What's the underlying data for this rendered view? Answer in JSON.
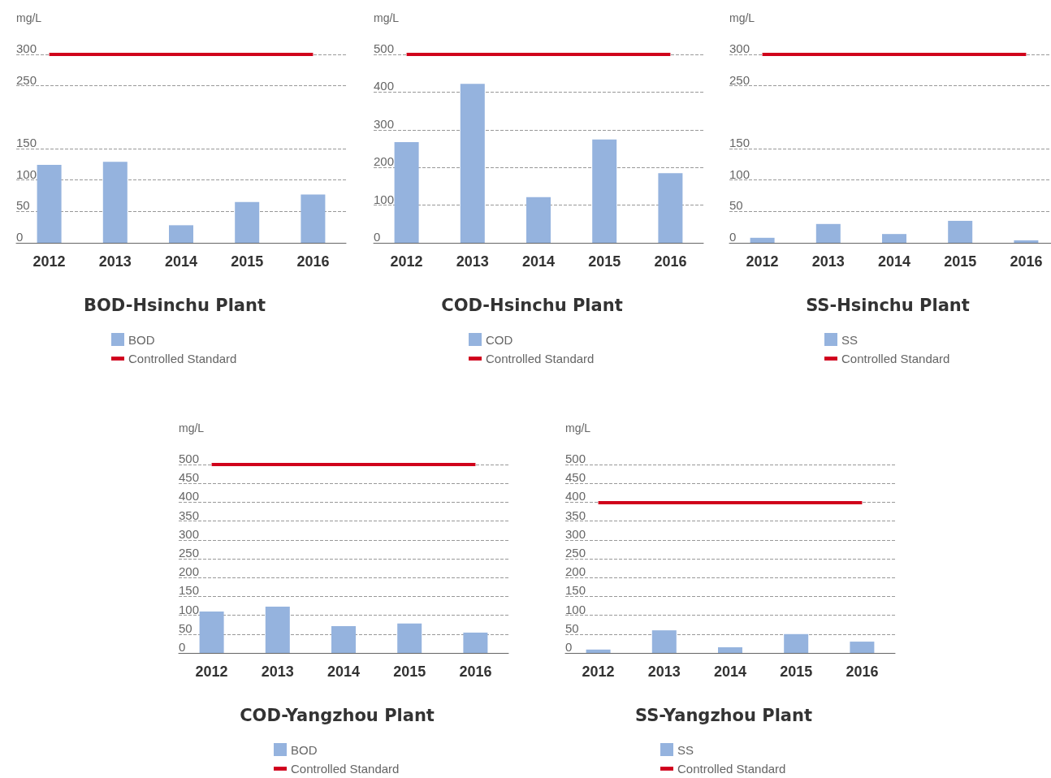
{
  "chart_data": [
    {
      "type": "bar",
      "title": "BOD-Hsinchu Plant",
      "ylabel": "mg/L",
      "categories": [
        "2012",
        "2013",
        "2014",
        "2015",
        "2016"
      ],
      "series": [
        {
          "name": "BOD",
          "color": "#95b3de",
          "values": [
            124,
            129,
            28,
            65,
            77
          ]
        }
      ],
      "ref_lines": [
        {
          "axis": "y",
          "value": 300,
          "label": "Controlled Standard",
          "color": "#d0021b"
        }
      ],
      "ylim": [
        0,
        300
      ],
      "yticks": [
        0,
        50,
        100,
        150,
        250,
        300
      ],
      "grid": "y",
      "legend": "bottom"
    },
    {
      "type": "bar",
      "title": "COD-Hsinchu Plant",
      "ylabel": "mg/L",
      "categories": [
        "2012",
        "2013",
        "2014",
        "2015",
        "2016"
      ],
      "series": [
        {
          "name": "COD",
          "color": "#95b3de",
          "values": [
            267,
            422,
            121,
            274,
            185
          ]
        }
      ],
      "ref_lines": [
        {
          "axis": "y",
          "value": 500,
          "label": "Controlled Standard",
          "color": "#d0021b"
        }
      ],
      "ylim": [
        0,
        500
      ],
      "yticks": [
        0,
        100,
        200,
        300,
        400,
        500
      ],
      "grid": "y",
      "legend": "bottom"
    },
    {
      "type": "bar",
      "title": "SS-Hsinchu Plant",
      "ylabel": "mg/L",
      "categories": [
        "2012",
        "2013",
        "2014",
        "2015",
        "2016"
      ],
      "series": [
        {
          "name": "SS",
          "color": "#95b3de",
          "values": [
            8,
            30,
            14,
            35,
            4
          ]
        }
      ],
      "ref_lines": [
        {
          "axis": "y",
          "value": 300,
          "label": "Controlled Standard",
          "color": "#d0021b"
        }
      ],
      "ylim": [
        0,
        300
      ],
      "yticks": [
        0,
        50,
        100,
        150,
        250,
        300
      ],
      "grid": "y",
      "legend": "bottom"
    },
    {
      "type": "bar",
      "title": "COD-Yangzhou Plant",
      "ylabel": "mg/L",
      "categories": [
        "2012",
        "2013",
        "2014",
        "2015",
        "2016"
      ],
      "series": [
        {
          "name": "BOD",
          "color": "#95b3de",
          "values": [
            110,
            123,
            71,
            78,
            54
          ]
        }
      ],
      "ref_lines": [
        {
          "axis": "y",
          "value": 500,
          "label": "Controlled Standard",
          "color": "#d0021b"
        }
      ],
      "ylim": [
        0,
        500
      ],
      "yticks": [
        0,
        50,
        100,
        150,
        200,
        250,
        300,
        350,
        400,
        450,
        500
      ],
      "grid": "y",
      "legend": "bottom"
    },
    {
      "type": "bar",
      "title": "SS-Yangzhou Plant",
      "ylabel": "mg/L",
      "categories": [
        "2012",
        "2013",
        "2014",
        "2015",
        "2016"
      ],
      "series": [
        {
          "name": "SS",
          "color": "#95b3de",
          "values": [
            9,
            60,
            15,
            50,
            30
          ]
        }
      ],
      "ref_lines": [
        {
          "axis": "y",
          "value": 400,
          "label": "Controlled Standard",
          "color": "#d0021b"
        }
      ],
      "ylim": [
        0,
        500
      ],
      "yticks": [
        0,
        50,
        100,
        150,
        200,
        250,
        300,
        350,
        400,
        450,
        500
      ],
      "grid": "y",
      "legend": "bottom"
    }
  ]
}
